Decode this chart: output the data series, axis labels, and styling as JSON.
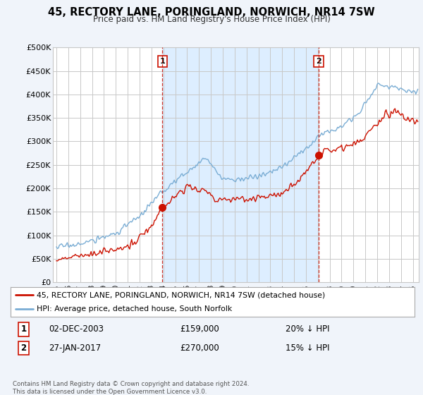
{
  "title": "45, RECTORY LANE, PORINGLAND, NORWICH, NR14 7SW",
  "subtitle": "Price paid vs. HM Land Registry's House Price Index (HPI)",
  "ylabel_ticks": [
    "£0",
    "£50K",
    "£100K",
    "£150K",
    "£200K",
    "£250K",
    "£300K",
    "£350K",
    "£400K",
    "£450K",
    "£500K"
  ],
  "ytick_values": [
    0,
    50000,
    100000,
    150000,
    200000,
    250000,
    300000,
    350000,
    400000,
    450000,
    500000
  ],
  "xlim_start": 1994.7,
  "xlim_end": 2025.5,
  "ylim": [
    0,
    500000
  ],
  "hpi_color": "#7aadd4",
  "price_color": "#cc1100",
  "shade_color": "#ddeeff",
  "sale1_x": 2003.92,
  "sale1_y": 159000,
  "sale2_x": 2017.08,
  "sale2_y": 270000,
  "legend_label1": "45, RECTORY LANE, PORINGLAND, NORWICH, NR14 7SW (detached house)",
  "legend_label2": "HPI: Average price, detached house, South Norfolk",
  "ann1_date": "02-DEC-2003",
  "ann1_price": "£159,000",
  "ann1_hpi": "20% ↓ HPI",
  "ann2_date": "27-JAN-2017",
  "ann2_price": "£270,000",
  "ann2_hpi": "15% ↓ HPI",
  "footer": "Contains HM Land Registry data © Crown copyright and database right 2024.\nThis data is licensed under the Open Government Licence v3.0.",
  "bg_color": "#f0f4fa",
  "plot_bg": "#ffffff",
  "grid_color": "#c8c8c8"
}
